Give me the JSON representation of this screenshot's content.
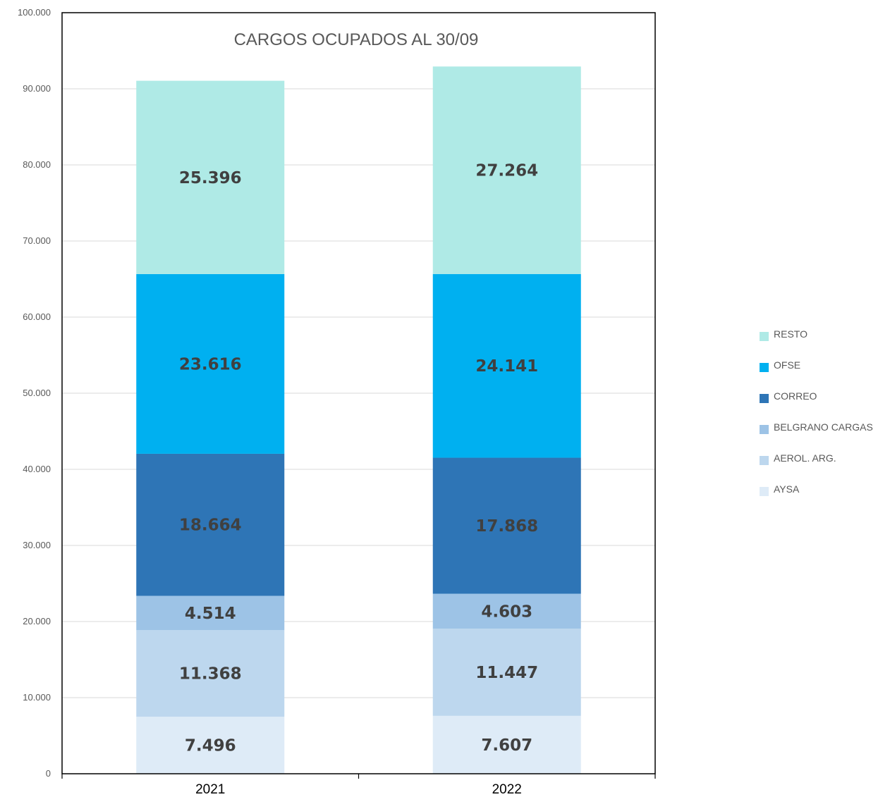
{
  "chart_data": {
    "type": "bar",
    "stacked": true,
    "title": "CARGOS OCUPADOS AL 30/09",
    "categories": [
      "2021",
      "2022"
    ],
    "ylim": [
      0,
      100000
    ],
    "yticks": [
      0,
      10000,
      20000,
      30000,
      40000,
      50000,
      60000,
      70000,
      80000,
      90000,
      100000
    ],
    "ytick_labels": [
      "0",
      "10.000",
      "20.000",
      "30.000",
      "40.000",
      "50.000",
      "60.000",
      "70.000",
      "80.000",
      "90.000",
      "100.000"
    ],
    "grid": true,
    "legend_position": "right",
    "series": [
      {
        "name": "AYSA",
        "color": "#DEEBF7",
        "values": [
          7496,
          7607
        ],
        "labels": [
          "7.496",
          "7.607"
        ]
      },
      {
        "name": "AEROL. ARG.",
        "color": "#BDD7EE",
        "values": [
          11368,
          11447
        ],
        "labels": [
          "11.368",
          "11.447"
        ]
      },
      {
        "name": "BELGRANO CARGAS",
        "color": "#9DC3E6",
        "values": [
          4514,
          4603
        ],
        "labels": [
          "4.514",
          "4.603"
        ]
      },
      {
        "name": "CORREO",
        "color": "#2E75B6",
        "values": [
          18664,
          17868
        ],
        "labels": [
          "18.664",
          "17.868"
        ]
      },
      {
        "name": "OFSE",
        "color": "#00B0F0",
        "values": [
          23616,
          24141
        ],
        "labels": [
          "23.616",
          "24.141"
        ]
      },
      {
        "name": "RESTO",
        "color": "#AFEAE6",
        "values": [
          25396,
          27264
        ],
        "labels": [
          "25.396",
          "27.264"
        ]
      }
    ]
  }
}
